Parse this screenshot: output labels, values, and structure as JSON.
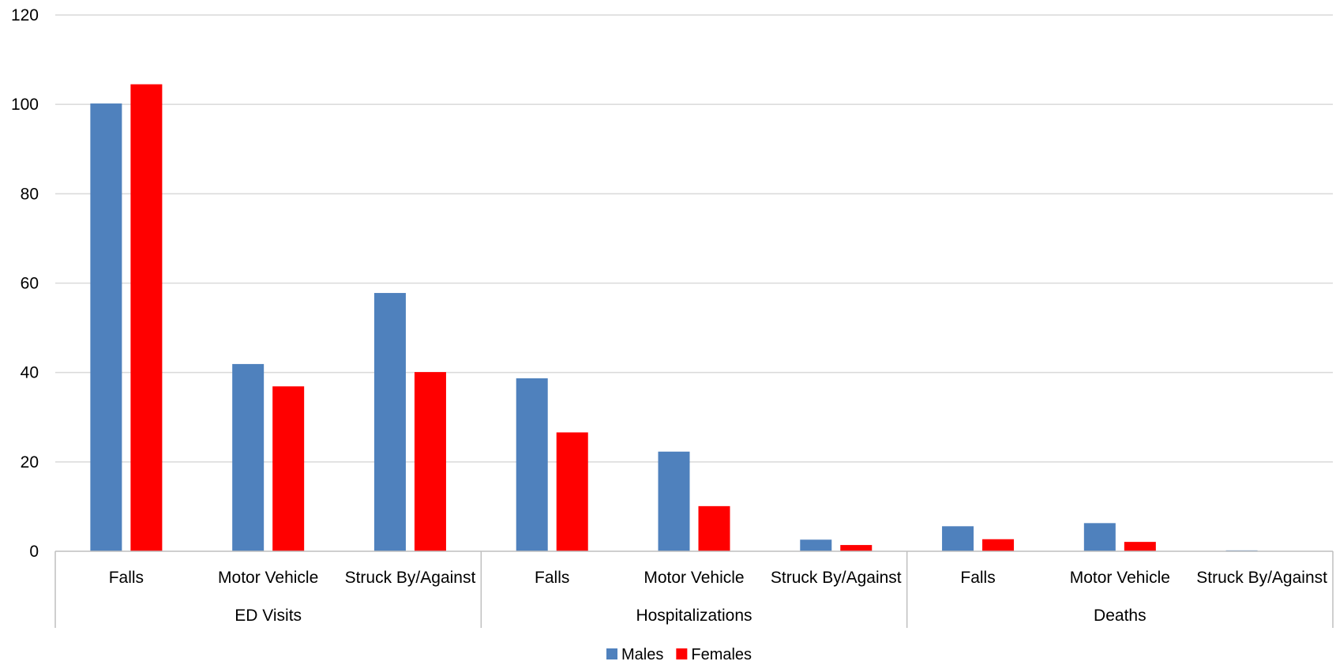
{
  "chart_data": {
    "type": "bar",
    "ylim": [
      0,
      120
    ],
    "yticks": [
      0,
      20,
      40,
      60,
      80,
      100,
      120
    ],
    "groups": [
      {
        "label": "ED Visits",
        "categories": [
          "Falls",
          "Motor Vehicle",
          "Struck By/Against"
        ]
      },
      {
        "label": "Hospitalizations",
        "categories": [
          "Falls",
          "Motor Vehicle",
          "Struck By/Against"
        ]
      },
      {
        "label": "Deaths",
        "categories": [
          "Falls",
          "Motor Vehicle",
          "Struck By/Against"
        ]
      }
    ],
    "series": [
      {
        "name": "Males",
        "color": "#4f81bd",
        "values": [
          100.2,
          41.9,
          57.8,
          38.7,
          22.3,
          2.6,
          5.6,
          6.3,
          0.2
        ]
      },
      {
        "name": "Females",
        "color": "#ff0000",
        "values": [
          104.5,
          36.9,
          40.1,
          26.6,
          10.1,
          1.4,
          2.7,
          2.1,
          0.0
        ]
      }
    ],
    "gridlines": true,
    "legend_position": "bottom"
  }
}
